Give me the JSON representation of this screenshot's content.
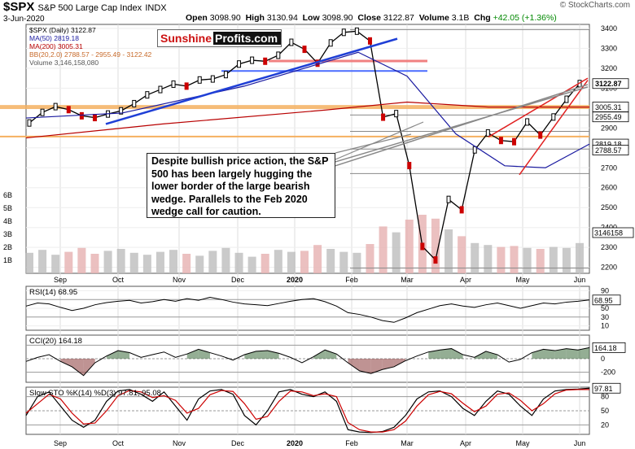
{
  "header": {
    "symbol": "$SPX",
    "name": "S&P 500 Large Cap Index",
    "exchange": "INDX",
    "date": "3-Jun-2020",
    "open_label": "Open",
    "open": "3098.90",
    "high_label": "High",
    "high": "3130.94",
    "low_label": "Low",
    "low": "3098.90",
    "close_label": "Close",
    "close": "3122.87",
    "volume_label": "Volume",
    "volume": "3.1B",
    "chg_label": "Chg",
    "chg": "+42.05 (+1.36%)",
    "copyright": "© StockCharts.com"
  },
  "logo": {
    "part1": "Sunshine",
    "part2": "Profits.com"
  },
  "legend": {
    "series": "$SPX (Daily) 3122.87",
    "ma50": "MA(50) 2819.18",
    "ma200": "MA(200) 3005.31",
    "bb": "BB(20,2.0) 2788.57 - 2955.49 - 3122.42",
    "volume": "Volume 3,146,158,080"
  },
  "annotation": "Despite bullish price action, the S&P 500 has been largely hugging the lower border of the large bearish wedge. Parallels to the Feb 2020 wedge call for caution.",
  "colors": {
    "up_candle": "#000000",
    "down_candle": "#cc0000",
    "ma50": "#1a1aa0",
    "ma200": "#b80000",
    "bb": "#e8a070",
    "support_orange": "#f5b060",
    "trend_blue": "#1f3fd6",
    "trend_red": "#e02020",
    "rsi_fill": "#2e6b2e",
    "cci_fill_up": "#3d6b3d",
    "cci_fill_down": "#8a3a3a",
    "sto_k": "#000000",
    "sto_d": "#cc0000"
  },
  "chart_data": [
    {
      "type": "candlestick",
      "title": "$SPX S&P 500 Large Cap Index",
      "x_labels": [
        "Sep",
        "Oct",
        "Nov",
        "Dec",
        "2020",
        "Feb",
        "Mar",
        "Apr",
        "May",
        "Jun"
      ],
      "y_ticks": [
        2200,
        2300,
        2400,
        2500,
        2600,
        2700,
        2800,
        2900,
        3000,
        3100,
        3200,
        3300,
        3400
      ],
      "ylim": [
        2170,
        3420
      ],
      "price_badges": [
        {
          "label": "3122.87",
          "value": 3122.87
        },
        {
          "label": "3005.31",
          "value": 3005.31
        },
        {
          "label": "2955.49",
          "value": 2955.49
        },
        {
          "label": "2819.18",
          "value": 2819.18
        },
        {
          "label": "2788.57",
          "value": 2788.57
        }
      ],
      "volume_ticks": [
        "6B",
        "5B",
        "4B",
        "3B",
        "2B",
        "1B"
      ],
      "volume_badge": "3146158",
      "weekly_close": [
        {
          "x": "Aug 28",
          "y": 2925
        },
        {
          "x": "Sep 6",
          "y": 2978
        },
        {
          "x": "Sep 13",
          "y": 3007
        },
        {
          "x": "Sep 20",
          "y": 2992
        },
        {
          "x": "Sep 27",
          "y": 2961
        },
        {
          "x": "Oct 4",
          "y": 2952
        },
        {
          "x": "Oct 11",
          "y": 2970
        },
        {
          "x": "Oct 18",
          "y": 2986
        },
        {
          "x": "Oct 25",
          "y": 3022
        },
        {
          "x": "Nov 1",
          "y": 3066
        },
        {
          "x": "Nov 8",
          "y": 3093
        },
        {
          "x": "Nov 15",
          "y": 3120
        },
        {
          "x": "Nov 22",
          "y": 3110
        },
        {
          "x": "Nov 29",
          "y": 3141
        },
        {
          "x": "Dec 6",
          "y": 3146
        },
        {
          "x": "Dec 13",
          "y": 3168
        },
        {
          "x": "Dec 20",
          "y": 3221
        },
        {
          "x": "Dec 27",
          "y": 3240
        },
        {
          "x": "Jan 3",
          "y": 3235
        },
        {
          "x": "Jan 10",
          "y": 3265
        },
        {
          "x": "Jan 17",
          "y": 3330
        },
        {
          "x": "Jan 24",
          "y": 3295
        },
        {
          "x": "Jan 31",
          "y": 3225
        },
        {
          "x": "Feb 7",
          "y": 3327
        },
        {
          "x": "Feb 14",
          "y": 3380
        },
        {
          "x": "Feb 19",
          "y": 3386
        },
        {
          "x": "Feb 21",
          "y": 3337
        },
        {
          "x": "Feb 28",
          "y": 2954
        },
        {
          "x": "Mar 6",
          "y": 2972
        },
        {
          "x": "Mar 13",
          "y": 2711
        },
        {
          "x": "Mar 20",
          "y": 2305
        },
        {
          "x": "Mar 23",
          "y": 2237
        },
        {
          "x": "Mar 27",
          "y": 2541
        },
        {
          "x": "Apr 3",
          "y": 2489
        },
        {
          "x": "Apr 10",
          "y": 2790
        },
        {
          "x": "Apr 17",
          "y": 2875
        },
        {
          "x": "Apr 24",
          "y": 2837
        },
        {
          "x": "May 1",
          "y": 2831
        },
        {
          "x": "May 8",
          "y": 2930
        },
        {
          "x": "May 15",
          "y": 2864
        },
        {
          "x": "May 22",
          "y": 2955
        },
        {
          "x": "May 29",
          "y": 3044
        },
        {
          "x": "Jun 3",
          "y": 3122.87
        }
      ]
    },
    {
      "type": "line",
      "title": "RSI(14) 68.95",
      "y_ticks": [
        90,
        70,
        50,
        30,
        10
      ],
      "ylim": [
        0,
        100
      ],
      "last_value": 68.95,
      "values": [
        55,
        62,
        60,
        52,
        45,
        50,
        58,
        63,
        66,
        68,
        62,
        65,
        70,
        66,
        72,
        68,
        75,
        70,
        64,
        60,
        58,
        56,
        61,
        66,
        70,
        72,
        65,
        55,
        40,
        36,
        30,
        22,
        18,
        28,
        40,
        48,
        56,
        60,
        55,
        52,
        58,
        62,
        56,
        50,
        56,
        62,
        60,
        64,
        66,
        68.95
      ]
    },
    {
      "type": "line",
      "title": "CCI(20) 164.18",
      "y_ticks": [
        200,
        0,
        -200
      ],
      "ylim": [
        -350,
        350
      ],
      "last_value": 164.18,
      "values": [
        -40,
        20,
        60,
        -40,
        -120,
        -250,
        -60,
        40,
        120,
        90,
        20,
        60,
        100,
        20,
        70,
        140,
        90,
        40,
        -20,
        60,
        110,
        120,
        80,
        20,
        -60,
        30,
        130,
        70,
        -60,
        -180,
        -220,
        -160,
        -120,
        -30,
        40,
        100,
        130,
        150,
        60,
        20,
        110,
        60,
        -50,
        -10,
        90,
        140,
        120,
        150,
        130,
        164.18
      ]
    },
    {
      "type": "line",
      "title": "Slow STO %K(14) %D(3) 97.81, 95.08",
      "y_ticks": [
        80,
        50,
        20
      ],
      "ylim": [
        0,
        100
      ],
      "series": [
        {
          "name": "%K(14)",
          "last_value": 97.81,
          "values": [
            40,
            80,
            90,
            60,
            30,
            15,
            30,
            70,
            92,
            95,
            85,
            70,
            90,
            60,
            30,
            75,
            92,
            95,
            85,
            40,
            20,
            50,
            90,
            95,
            85,
            80,
            90,
            70,
            10,
            5,
            4,
            6,
            15,
            40,
            75,
            90,
            92,
            80,
            55,
            40,
            70,
            92,
            85,
            60,
            40,
            75,
            92,
            95,
            96,
            97.81
          ]
        },
        {
          "name": "%D(3)",
          "last_value": 95.08,
          "values": [
            45,
            65,
            85,
            75,
            45,
            22,
            24,
            50,
            82,
            93,
            90,
            78,
            82,
            72,
            45,
            55,
            84,
            93,
            91,
            65,
            32,
            38,
            70,
            92,
            90,
            82,
            86,
            80,
            25,
            10,
            5,
            5,
            10,
            28,
            60,
            84,
            91,
            86,
            66,
            48,
            60,
            85,
            88,
            72,
            50,
            65,
            86,
            94,
            95,
            95.08
          ]
        }
      ]
    }
  ]
}
